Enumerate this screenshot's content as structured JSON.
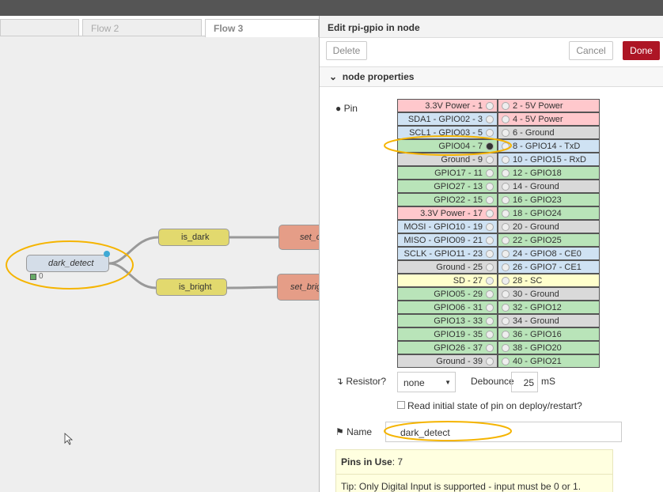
{
  "tabs": [
    "Flow 2",
    "Flow 3"
  ],
  "canvas": {
    "nodes": {
      "dark_detect": "dark_detect",
      "status": "0",
      "is_dark": "is_dark",
      "is_bright": "is_bright",
      "set_dark": "set_c",
      "set_bright": "set_brig"
    }
  },
  "panel": {
    "title": "Edit rpi-gpio in node",
    "buttons": {
      "delete": "Delete",
      "cancel": "Cancel",
      "done": "Done"
    },
    "section": "node properties",
    "pin_label": "Pin",
    "pins": {
      "rows": [
        [
          "3.3V Power - 1",
          "#ffc8cc",
          "2 - 5V Power",
          "#ffc8cc"
        ],
        [
          "SDA1 - GPIO02 - 3",
          "#cfe2f3",
          "4 - 5V Power",
          "#ffc8cc"
        ],
        [
          "SCL1 - GPIO03 - 5",
          "#cfe2f3",
          "6 - Ground",
          "#d9d9d9"
        ],
        [
          "GPIO04 - 7",
          "#b9e4b9",
          "8 - GPIO14 - TxD",
          "#cfe2f3"
        ],
        [
          "Ground - 9",
          "#d9d9d9",
          "10 - GPIO15 - RxD",
          "#cfe2f3"
        ],
        [
          "GPIO17 - 11",
          "#b9e4b9",
          "12 - GPIO18",
          "#b9e4b9"
        ],
        [
          "GPIO27 - 13",
          "#b9e4b9",
          "14 - Ground",
          "#d9d9d9"
        ],
        [
          "GPIO22 - 15",
          "#b9e4b9",
          "16 - GPIO23",
          "#b9e4b9"
        ],
        [
          "3.3V Power - 17",
          "#ffc8cc",
          "18 - GPIO24",
          "#b9e4b9"
        ],
        [
          "MOSI - GPIO10 - 19",
          "#cfe2f3",
          "20 - Ground",
          "#d9d9d9"
        ],
        [
          "MISO - GPIO09 - 21",
          "#cfe2f3",
          "22 - GPIO25",
          "#b9e4b9"
        ],
        [
          "SCLK - GPIO11 - 23",
          "#cfe2f3",
          "24 - GPIO8 - CE0",
          "#cfe2f3"
        ],
        [
          "Ground - 25",
          "#d9d9d9",
          "26 - GPIO7 - CE1",
          "#cfe2f3"
        ],
        [
          "SD - 27",
          "#ffffcc",
          "28 - SC",
          "#ffffcc"
        ],
        [
          "GPIO05 - 29",
          "#b9e4b9",
          "30 - Ground",
          "#d9d9d9"
        ],
        [
          "GPIO06 - 31",
          "#b9e4b9",
          "32 - GPIO12",
          "#b9e4b9"
        ],
        [
          "GPIO13 - 33",
          "#b9e4b9",
          "34 - Ground",
          "#d9d9d9"
        ],
        [
          "GPIO19 - 35",
          "#b9e4b9",
          "36 - GPIO16",
          "#b9e4b9"
        ],
        [
          "GPIO26 - 37",
          "#b9e4b9",
          "38 - GPIO20",
          "#b9e4b9"
        ],
        [
          "Ground - 39",
          "#d9d9d9",
          "40 - GPIO21",
          "#b9e4b9"
        ]
      ],
      "selected": 3
    },
    "resistor_label": "Resistor?",
    "resistor": "none",
    "debounce_label": "Debounce",
    "debounce": "25",
    "debounce_unit": "mS",
    "read_initial": "Read initial state of pin on deploy/restart?",
    "name_label": "Name",
    "name": "dark_detect",
    "info": {
      "pins_label": "Pins in Use",
      "pins_value": ": 7",
      "tip": "Tip: Only Digital Input is supported - input must be 0 or 1."
    }
  }
}
